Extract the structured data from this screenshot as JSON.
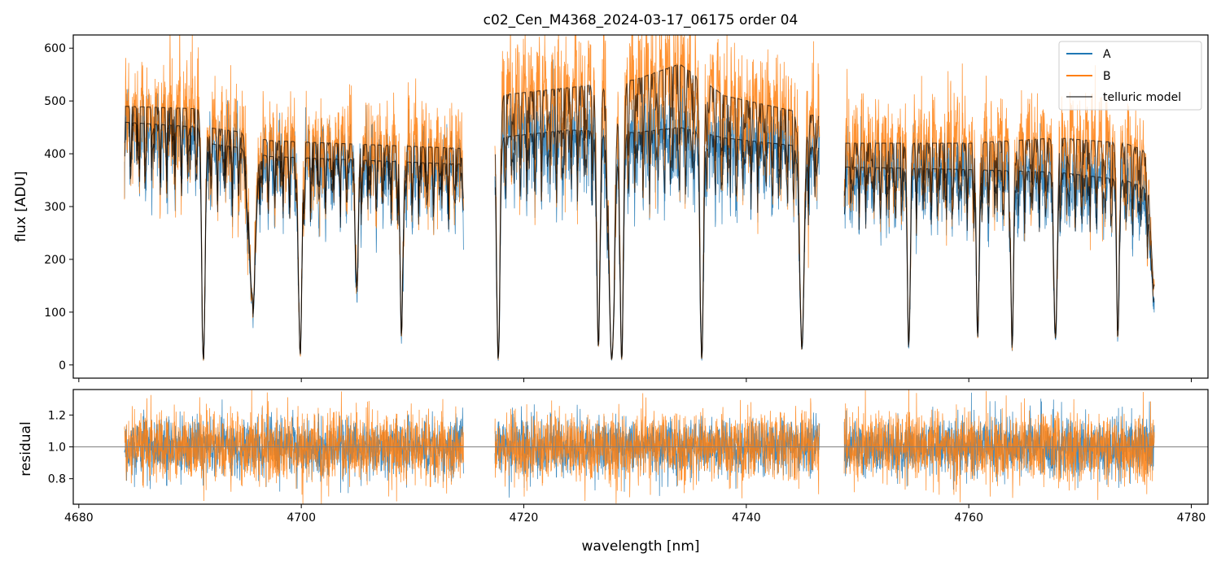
{
  "title": "c02_Cen_M4368_2024-03-17_06175  order 04",
  "colors": {
    "A": "#1f77b4",
    "B": "#ff7f0e",
    "telluric": "#000000",
    "axis": "#000000",
    "refline": "#808080"
  },
  "chart_data": [
    {
      "type": "line",
      "panel": "top",
      "title": "c02_Cen_M4368_2024-03-17_06175  order 04",
      "xlabel": "",
      "ylabel": "flux [ADU]",
      "xlim": [
        4679.5,
        4781.5
      ],
      "ylim": [
        -25,
        625
      ],
      "xticks": [
        4680,
        4700,
        4720,
        4740,
        4760,
        4780
      ],
      "yticks": [
        0,
        100,
        200,
        300,
        400,
        500,
        600
      ],
      "ytick_labels": [
        "0",
        "100",
        "200",
        "300",
        "400",
        "500",
        "600"
      ],
      "segments": [
        [
          4684.1,
          4714.6
        ],
        [
          4717.4,
          4746.6
        ],
        [
          4748.8,
          4776.7
        ]
      ],
      "continuum": {
        "A": {
          "x": [
            4684,
            4691,
            4691.5,
            4695,
            4697,
            4714.6,
            4717.4,
            4724,
            4730,
            4734,
            4738,
            4746.6,
            4748.8,
            4760,
            4768,
            4774,
            4776.7
          ],
          "y": [
            460,
            450,
            420,
            410,
            395,
            380,
            430,
            445,
            440,
            450,
            430,
            410,
            375,
            370,
            365,
            350,
            330
          ]
        },
        "B": {
          "x": [
            4684,
            4691,
            4691.5,
            4695,
            4697,
            4714.6,
            4717.4,
            4724,
            4730,
            4734,
            4738,
            4746.6,
            4748.8,
            4760,
            4768,
            4774,
            4776.7
          ],
          "y": [
            490,
            485,
            450,
            440,
            425,
            410,
            510,
            525,
            540,
            570,
            510,
            470,
            420,
            420,
            430,
            420,
            400
          ]
        }
      },
      "absorption_lines": [
        {
          "center": 4691.2,
          "depth": 480,
          "width": 0.15
        },
        {
          "center": 4695.6,
          "depth": 320,
          "width": 0.3
        },
        {
          "center": 4699.9,
          "depth": 440,
          "width": 0.15
        },
        {
          "center": 4705.0,
          "depth": 300,
          "width": 0.12
        },
        {
          "center": 4709.0,
          "depth": 400,
          "width": 0.12
        },
        {
          "center": 4717.7,
          "depth": 450,
          "width": 0.15
        },
        {
          "center": 4726.7,
          "depth": 420,
          "width": 0.15
        },
        {
          "center": 4727.9,
          "depth": 470,
          "width": 0.25
        },
        {
          "center": 4728.8,
          "depth": 450,
          "width": 0.15
        },
        {
          "center": 4736.0,
          "depth": 460,
          "width": 0.15
        },
        {
          "center": 4745.0,
          "depth": 420,
          "width": 0.2
        },
        {
          "center": 4754.6,
          "depth": 420,
          "width": 0.12
        },
        {
          "center": 4760.8,
          "depth": 400,
          "width": 0.12
        },
        {
          "center": 4763.9,
          "depth": 420,
          "width": 0.12
        },
        {
          "center": 4767.8,
          "depth": 400,
          "width": 0.15
        },
        {
          "center": 4773.4,
          "depth": 380,
          "width": 0.12
        },
        {
          "center": 4776.6,
          "depth": 250,
          "width": 0.3
        }
      ],
      "series": [
        {
          "name": "A",
          "color": "#1f77b4"
        },
        {
          "name": "B",
          "color": "#ff7f0e"
        },
        {
          "name": "telluric model",
          "color": "#000000"
        }
      ],
      "legend_position": "top-right"
    },
    {
      "type": "line",
      "panel": "bottom",
      "xlabel": "wavelength [nm]",
      "ylabel": "residual",
      "xlim": [
        4679.5,
        4781.5
      ],
      "ylim": [
        0.64,
        1.36
      ],
      "xticks": [
        4680,
        4700,
        4720,
        4740,
        4760,
        4780
      ],
      "xtick_labels": [
        "4680",
        "4700",
        "4720",
        "4740",
        "4760",
        "4780"
      ],
      "yticks": [
        0.8,
        1.0,
        1.2
      ],
      "ytick_labels": [
        "0.8",
        "1.0",
        "1.2"
      ],
      "reference_line": 1.0,
      "noise_std": {
        "A": 0.09,
        "B": 0.11
      },
      "series": [
        {
          "name": "A",
          "color": "#1f77b4"
        },
        {
          "name": "B",
          "color": "#ff7f0e"
        }
      ]
    }
  ]
}
